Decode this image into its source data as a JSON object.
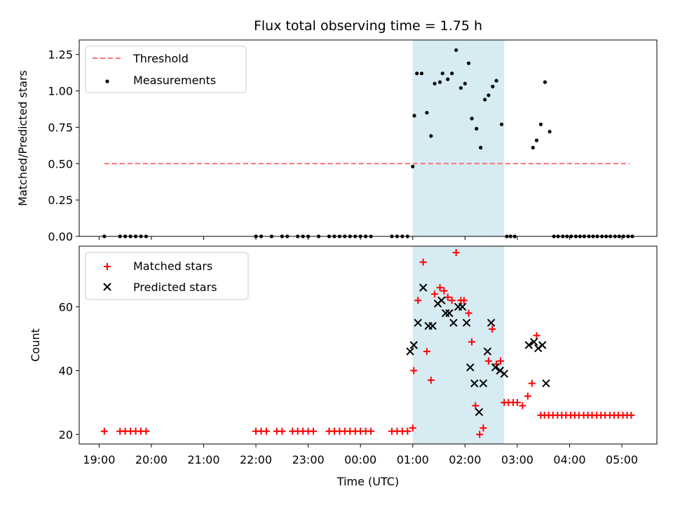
{
  "chart_data": [
    {
      "type": "scatter",
      "title": "Flux total observing time = 1.75 h",
      "ylabel": "Matched/Predicted stars",
      "xlabel": "",
      "x_unit": "hours since 19:00 UTC",
      "xlim": [
        -0.38,
        10.67
      ],
      "ylim": [
        0,
        1.35
      ],
      "yticks": [
        0.0,
        0.25,
        0.5,
        0.75,
        1.0,
        1.25
      ],
      "ytick_labels": [
        "0.00",
        "0.25",
        "0.50",
        "0.75",
        "1.00",
        "1.25"
      ],
      "shaded_span": {
        "x": [
          6.0,
          7.75
        ],
        "color": "#add8e6"
      },
      "legend": {
        "placement": "top-left",
        "entries": [
          "Threshold",
          "Measurements"
        ]
      },
      "threshold": {
        "name": "Threshold",
        "y": 0.5,
        "x": [
          0.1,
          10.15
        ],
        "color": "#ff7070",
        "style": "dashed"
      },
      "series": [
        {
          "name": "Measurements",
          "color": "#000000",
          "points": [
            [
              0.1,
              0
            ],
            [
              0.4,
              0
            ],
            [
              0.5,
              0
            ],
            [
              0.6,
              0
            ],
            [
              0.7,
              0
            ],
            [
              0.8,
              0
            ],
            [
              0.9,
              0
            ],
            [
              3.0,
              0
            ],
            [
              3.1,
              0
            ],
            [
              3.3,
              0
            ],
            [
              3.5,
              0
            ],
            [
              3.6,
              0
            ],
            [
              3.8,
              0
            ],
            [
              3.9,
              0
            ],
            [
              4.0,
              0
            ],
            [
              4.2,
              0
            ],
            [
              4.4,
              0
            ],
            [
              4.5,
              0
            ],
            [
              4.6,
              0
            ],
            [
              4.7,
              0
            ],
            [
              4.8,
              0
            ],
            [
              4.9,
              0
            ],
            [
              5.0,
              0
            ],
            [
              5.1,
              0
            ],
            [
              5.2,
              0
            ],
            [
              5.6,
              0
            ],
            [
              5.7,
              0
            ],
            [
              5.8,
              0
            ],
            [
              5.9,
              0
            ],
            [
              6.0,
              0.48
            ],
            [
              6.03,
              0.83
            ],
            [
              6.08,
              1.12
            ],
            [
              6.17,
              1.12
            ],
            [
              6.27,
              0.85
            ],
            [
              6.35,
              0.69
            ],
            [
              6.42,
              1.05
            ],
            [
              6.52,
              1.06
            ],
            [
              6.57,
              1.12
            ],
            [
              6.67,
              1.08
            ],
            [
              6.75,
              1.12
            ],
            [
              6.83,
              1.28
            ],
            [
              6.92,
              1.02
            ],
            [
              7.0,
              1.05
            ],
            [
              7.07,
              1.19
            ],
            [
              7.13,
              0.81
            ],
            [
              7.22,
              0.74
            ],
            [
              7.3,
              0.61
            ],
            [
              7.38,
              0.94
            ],
            [
              7.45,
              0.97
            ],
            [
              7.53,
              1.03
            ],
            [
              7.6,
              1.07
            ],
            [
              7.7,
              0.77
            ],
            [
              7.8,
              0
            ],
            [
              7.87,
              0
            ],
            [
              7.95,
              0
            ],
            [
              8.3,
              0.61
            ],
            [
              8.37,
              0.66
            ],
            [
              8.45,
              0.77
            ],
            [
              8.53,
              1.06
            ],
            [
              8.62,
              0.72
            ],
            [
              8.7,
              0
            ],
            [
              8.78,
              0
            ],
            [
              8.87,
              0
            ],
            [
              8.95,
              0
            ],
            [
              9.03,
              0
            ],
            [
              9.12,
              0
            ],
            [
              9.2,
              0
            ],
            [
              9.28,
              0
            ],
            [
              9.37,
              0
            ],
            [
              9.45,
              0
            ],
            [
              9.53,
              0
            ],
            [
              9.62,
              0
            ],
            [
              9.7,
              0
            ],
            [
              9.78,
              0
            ],
            [
              9.87,
              0
            ],
            [
              9.95,
              0
            ],
            [
              10.03,
              0
            ],
            [
              10.12,
              0
            ],
            [
              10.2,
              0
            ]
          ]
        }
      ]
    },
    {
      "type": "scatter",
      "title": "",
      "xlabel": "Time (UTC)",
      "ylabel": "Count",
      "x_unit": "hours since 19:00 UTC",
      "xlim": [
        -0.38,
        10.67
      ],
      "ylim": [
        17,
        79
      ],
      "xticks": [
        0,
        1,
        2,
        3,
        4,
        5,
        6,
        7,
        8,
        9,
        10
      ],
      "xtick_labels": [
        "19:00",
        "20:00",
        "21:00",
        "22:00",
        "23:00",
        "00:00",
        "01:00",
        "02:00",
        "03:00",
        "04:00",
        "05:00"
      ],
      "yticks": [
        20,
        40,
        60
      ],
      "ytick_labels": [
        "20",
        "40",
        "60"
      ],
      "shaded_span": {
        "x": [
          6.0,
          7.75
        ],
        "color": "#add8e6"
      },
      "legend": {
        "placement": "top-left",
        "entries": [
          "Matched stars",
          "Predicted stars"
        ]
      },
      "series": [
        {
          "name": "Matched stars",
          "marker": "+",
          "color": "#ff0000",
          "points": [
            [
              0.1,
              21
            ],
            [
              0.4,
              21
            ],
            [
              0.5,
              21
            ],
            [
              0.6,
              21
            ],
            [
              0.7,
              21
            ],
            [
              0.8,
              21
            ],
            [
              0.9,
              21
            ],
            [
              3.0,
              21
            ],
            [
              3.1,
              21
            ],
            [
              3.2,
              21
            ],
            [
              3.4,
              21
            ],
            [
              3.5,
              21
            ],
            [
              3.7,
              21
            ],
            [
              3.8,
              21
            ],
            [
              3.9,
              21
            ],
            [
              4.0,
              21
            ],
            [
              4.1,
              21
            ],
            [
              4.4,
              21
            ],
            [
              4.5,
              21
            ],
            [
              4.6,
              21
            ],
            [
              4.7,
              21
            ],
            [
              4.8,
              21
            ],
            [
              4.9,
              21
            ],
            [
              5.0,
              21
            ],
            [
              5.1,
              21
            ],
            [
              5.2,
              21
            ],
            [
              5.6,
              21
            ],
            [
              5.7,
              21
            ],
            [
              5.8,
              21
            ],
            [
              5.9,
              21
            ],
            [
              6.0,
              22
            ],
            [
              6.02,
              40
            ],
            [
              6.1,
              62
            ],
            [
              6.2,
              74
            ],
            [
              6.27,
              46
            ],
            [
              6.35,
              37
            ],
            [
              6.42,
              64
            ],
            [
              6.52,
              66
            ],
            [
              6.6,
              65
            ],
            [
              6.67,
              63
            ],
            [
              6.75,
              62
            ],
            [
              6.83,
              77
            ],
            [
              6.92,
              62
            ],
            [
              6.98,
              62
            ],
            [
              7.07,
              58
            ],
            [
              7.13,
              49
            ],
            [
              7.2,
              29
            ],
            [
              7.28,
              20
            ],
            [
              7.35,
              22
            ],
            [
              7.45,
              43
            ],
            [
              7.52,
              53
            ],
            [
              7.6,
              42
            ],
            [
              7.68,
              43
            ],
            [
              7.75,
              30
            ],
            [
              7.83,
              30
            ],
            [
              7.92,
              30
            ],
            [
              8.0,
              30
            ],
            [
              8.1,
              29
            ],
            [
              8.2,
              32
            ],
            [
              8.28,
              36
            ],
            [
              8.37,
              51
            ],
            [
              8.45,
              26
            ],
            [
              8.52,
              26
            ],
            [
              8.6,
              26
            ],
            [
              8.68,
              26
            ],
            [
              8.77,
              26
            ],
            [
              8.85,
              26
            ],
            [
              8.93,
              26
            ],
            [
              9.02,
              26
            ],
            [
              9.1,
              26
            ],
            [
              9.18,
              26
            ],
            [
              9.27,
              26
            ],
            [
              9.35,
              26
            ],
            [
              9.43,
              26
            ],
            [
              9.52,
              26
            ],
            [
              9.6,
              26
            ],
            [
              9.68,
              26
            ],
            [
              9.77,
              26
            ],
            [
              9.85,
              26
            ],
            [
              9.93,
              26
            ],
            [
              10.02,
              26
            ],
            [
              10.1,
              26
            ],
            [
              10.18,
              26
            ]
          ]
        },
        {
          "name": "Predicted stars",
          "marker": "x",
          "color": "#000000",
          "points": [
            [
              5.95,
              46
            ],
            [
              6.02,
              48
            ],
            [
              6.1,
              55
            ],
            [
              6.2,
              66
            ],
            [
              6.3,
              54
            ],
            [
              6.38,
              54
            ],
            [
              6.48,
              61
            ],
            [
              6.55,
              62
            ],
            [
              6.63,
              58
            ],
            [
              6.7,
              58
            ],
            [
              6.78,
              55
            ],
            [
              6.87,
              60
            ],
            [
              6.95,
              60
            ],
            [
              7.03,
              55
            ],
            [
              7.1,
              41
            ],
            [
              7.18,
              36
            ],
            [
              7.27,
              27
            ],
            [
              7.35,
              36
            ],
            [
              7.43,
              46
            ],
            [
              7.5,
              55
            ],
            [
              7.58,
              41
            ],
            [
              7.67,
              40
            ],
            [
              7.75,
              39
            ],
            [
              8.22,
              48
            ],
            [
              8.32,
              49
            ],
            [
              8.4,
              47
            ],
            [
              8.48,
              48
            ],
            [
              8.55,
              36
            ]
          ]
        }
      ]
    }
  ]
}
